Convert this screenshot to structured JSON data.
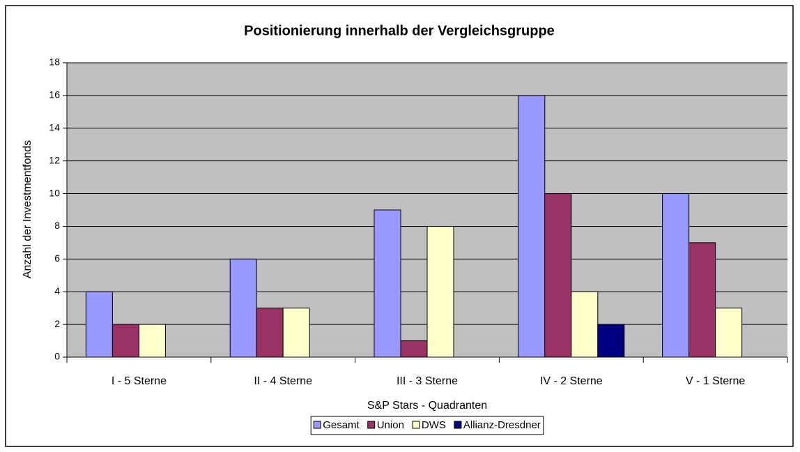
{
  "chart_data": {
    "type": "bar",
    "title": "Positionierung innerhalb der Vergleichsgruppe",
    "xlabel": "S&P Stars - Quadranten",
    "ylabel": "Anzahl der Investmentfonds",
    "categories": [
      "I - 5 Sterne",
      "II - 4 Sterne",
      "III - 3 Sterne",
      "IV - 2 Sterne",
      "V - 1 Sterne"
    ],
    "series": [
      {
        "name": "Gesamt",
        "color": "#9999ff",
        "values": [
          4,
          6,
          9,
          16,
          10
        ]
      },
      {
        "name": "Union",
        "color": "#993366",
        "values": [
          2,
          3,
          1,
          10,
          7
        ]
      },
      {
        "name": "DWS",
        "color": "#ffffcc",
        "values": [
          2,
          3,
          8,
          4,
          3
        ]
      },
      {
        "name": "Allianz-Dresdner",
        "color": "#000080",
        "values": [
          0,
          0,
          0,
          2,
          0
        ]
      }
    ],
    "ylim": [
      0,
      18
    ],
    "yticks": [
      0,
      2,
      4,
      6,
      8,
      10,
      12,
      14,
      16,
      18
    ],
    "grid": true,
    "legend": "bottom"
  }
}
